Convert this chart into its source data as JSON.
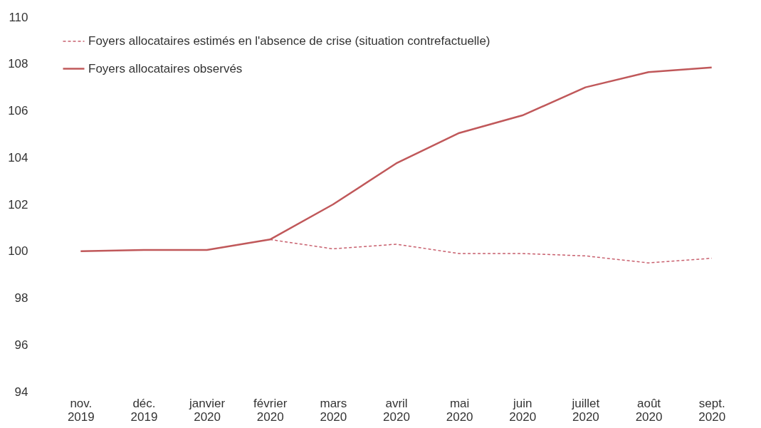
{
  "chart_data": {
    "type": "line",
    "categories": [
      "nov. 2019",
      "déc. 2019",
      "janvier 2020",
      "février 2020",
      "mars 2020",
      "avril 2020",
      "mai 2020",
      "juin 2020",
      "juillet 2020",
      "août 2020",
      "sept. 2020"
    ],
    "series": [
      {
        "name": "Foyers allocataires estimés en l'absence de crise (situation contrefactuelle)",
        "color": "#c8606e",
        "line_style": "dashed",
        "values": [
          null,
          null,
          null,
          100.5,
          100.1,
          100.3,
          99.9,
          99.9,
          99.8,
          99.5,
          99.7
        ]
      },
      {
        "name": "Foyers allocataires observés",
        "color": "#c0585a",
        "line_style": "solid",
        "values": [
          100,
          100.05,
          100.05,
          100.5,
          102,
          103.75,
          105.05,
          105.8,
          107,
          107.65,
          107.85
        ]
      }
    ],
    "ylim": [
      94,
      110
    ],
    "yticks": [
      94,
      96,
      98,
      100,
      102,
      104,
      106,
      108,
      110
    ],
    "grid": false,
    "legend": "top left",
    "marker": "none"
  }
}
